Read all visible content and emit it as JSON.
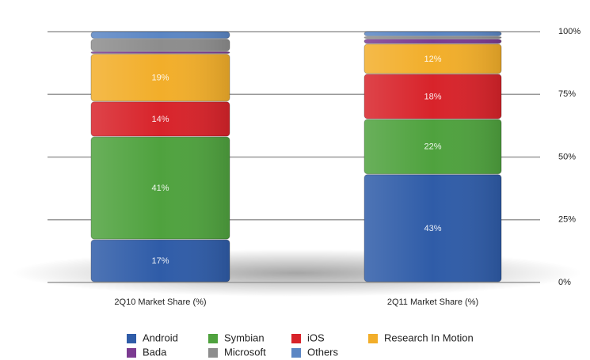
{
  "chart_data": {
    "type": "stacked_bar",
    "categories": [
      "2Q10 Market Share (%)",
      "2Q11 Market Share (%)"
    ],
    "series": [
      {
        "name": "Android",
        "color": "#2f5ca8",
        "values": [
          17,
          43
        ],
        "value_labels": [
          "17%",
          "43%"
        ]
      },
      {
        "name": "Symbian",
        "color": "#4fa23e",
        "values": [
          41,
          22
        ],
        "value_labels": [
          "41%",
          "22%"
        ]
      },
      {
        "name": "iOS",
        "color": "#d8232a",
        "values": [
          14,
          18
        ],
        "value_labels": [
          "14%",
          "18%"
        ]
      },
      {
        "name": "Research In Motion",
        "color": "#f2ae2a",
        "values": [
          19,
          12
        ],
        "value_labels": [
          "19%",
          "12%"
        ]
      },
      {
        "name": "Bada",
        "color": "#7b3b91",
        "values": [
          1,
          2
        ]
      },
      {
        "name": "Microsoft",
        "color": "#8d8d8d",
        "values": [
          5,
          1
        ]
      },
      {
        "name": "Others",
        "color": "#5b86c4",
        "values": [
          3,
          2
        ]
      }
    ],
    "ylim": [
      0,
      100
    ],
    "yticks": [
      {
        "value": 0,
        "label": "0%"
      },
      {
        "value": 25,
        "label": "25%"
      },
      {
        "value": 50,
        "label": "50%"
      },
      {
        "value": 75,
        "label": "75%"
      },
      {
        "value": 100,
        "label": "100%"
      }
    ],
    "grid": true,
    "legend": "bottom"
  }
}
